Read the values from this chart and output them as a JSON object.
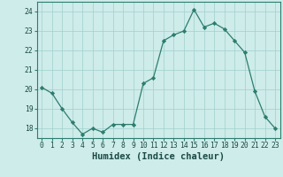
{
  "x": [
    0,
    1,
    2,
    3,
    4,
    5,
    6,
    7,
    8,
    9,
    10,
    11,
    12,
    13,
    14,
    15,
    16,
    17,
    18,
    19,
    20,
    21,
    22,
    23
  ],
  "y": [
    20.1,
    19.8,
    19.0,
    18.3,
    17.7,
    18.0,
    17.8,
    18.2,
    18.2,
    18.2,
    20.3,
    20.6,
    22.5,
    22.8,
    23.0,
    24.1,
    23.2,
    23.4,
    23.1,
    22.5,
    21.9,
    19.9,
    18.6,
    18.0
  ],
  "xlabel": "Humidex (Indice chaleur)",
  "ylim": [
    17.5,
    24.5
  ],
  "xlim": [
    -0.5,
    23.5
  ],
  "yticks": [
    18,
    19,
    20,
    21,
    22,
    23,
    24
  ],
  "xtick_labels": [
    "0",
    "1",
    "2",
    "3",
    "4",
    "5",
    "6",
    "7",
    "8",
    "9",
    "10",
    "11",
    "12",
    "13",
    "14",
    "15",
    "16",
    "17",
    "18",
    "19",
    "20",
    "21",
    "22",
    "23"
  ],
  "line_color": "#2d7d6e",
  "marker": "D",
  "marker_size": 2.2,
  "bg_color": "#ceecea",
  "grid_color": "#a0d0cc",
  "axis_color": "#2d7d6e",
  "label_color": "#1a4a44",
  "tick_fontsize": 5.8,
  "xlabel_fontsize": 7.5
}
